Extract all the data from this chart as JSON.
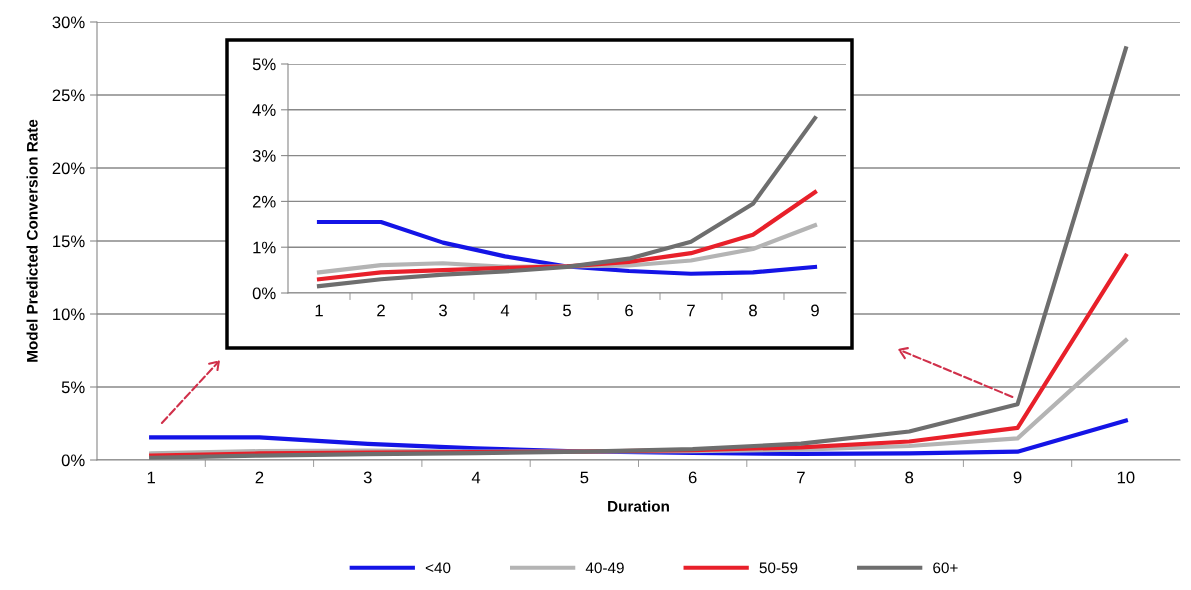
{
  "chart_data": [
    {
      "type": "line",
      "xlabel": "Duration",
      "ylabel": "Model Predicted Conversion Rate",
      "categories": [
        "1",
        "2",
        "3",
        "4",
        "5",
        "6",
        "7",
        "8",
        "9",
        "10"
      ],
      "series": [
        {
          "name": "<40",
          "color": "#1414e6",
          "values": [
            1.55,
            1.55,
            1.1,
            0.8,
            0.58,
            0.48,
            0.42,
            0.45,
            0.57,
            2.7
          ]
        },
        {
          "name": "40-49",
          "color": "#b4b4b4",
          "values": [
            0.45,
            0.61,
            0.65,
            0.57,
            0.58,
            0.6,
            0.71,
            0.96,
            1.48,
            8.2
          ]
        },
        {
          "name": "50-59",
          "color": "#e8202a",
          "values": [
            0.3,
            0.45,
            0.5,
            0.55,
            0.58,
            0.68,
            0.87,
            1.27,
            2.2,
            14.0
          ]
        },
        {
          "name": "60+",
          "color": "#6e6e6e",
          "values": [
            0.15,
            0.3,
            0.4,
            0.47,
            0.57,
            0.75,
            1.12,
            1.95,
            3.82,
            28.2
          ]
        }
      ],
      "ylim": [
        0,
        30
      ],
      "yticks": [
        {
          "value": 0,
          "label": "0%"
        },
        {
          "value": 5,
          "label": "5%"
        },
        {
          "value": 10,
          "label": "10%"
        },
        {
          "value": 15,
          "label": "15%"
        },
        {
          "value": 20,
          "label": "20%"
        },
        {
          "value": 25,
          "label": "25%"
        },
        {
          "value": 30,
          "label": "30%"
        }
      ],
      "grid": "y",
      "legend": "bottom",
      "marker": "none",
      "line_style": "solid"
    },
    {
      "type": "line",
      "categories": [
        "1",
        "2",
        "3",
        "4",
        "5",
        "6",
        "7",
        "8",
        "9"
      ],
      "series": [
        {
          "color": "#1414e6",
          "values": [
            1.55,
            1.55,
            1.1,
            0.8,
            0.58,
            0.48,
            0.42,
            0.45,
            0.57
          ]
        },
        {
          "color": "#b4b4b4",
          "values": [
            0.45,
            0.61,
            0.65,
            0.57,
            0.58,
            0.6,
            0.71,
            0.96,
            1.48
          ]
        },
        {
          "color": "#e8202a",
          "values": [
            0.3,
            0.45,
            0.5,
            0.55,
            0.58,
            0.68,
            0.87,
            1.27,
            2.2
          ]
        },
        {
          "color": "#6e6e6e",
          "values": [
            0.15,
            0.3,
            0.4,
            0.47,
            0.57,
            0.75,
            1.12,
            1.95,
            3.82
          ]
        }
      ],
      "ylim": [
        0,
        5
      ],
      "yticks": [
        {
          "value": 0,
          "label": "0%"
        },
        {
          "value": 1,
          "label": "1%"
        },
        {
          "value": 2,
          "label": "2%"
        },
        {
          "value": 3,
          "label": "3%"
        },
        {
          "value": 4,
          "label": "4%"
        },
        {
          "value": 5,
          "label": "5%"
        }
      ],
      "grid": "y",
      "marker": "none",
      "line_style": "solid"
    }
  ]
}
